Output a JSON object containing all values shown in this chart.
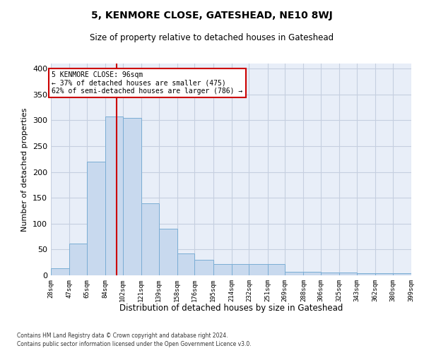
{
  "title": "5, KENMORE CLOSE, GATESHEAD, NE10 8WJ",
  "subtitle": "Size of property relative to detached houses in Gateshead",
  "xlabel": "Distribution of detached houses by size in Gateshead",
  "ylabel": "Number of detached properties",
  "bar_color": "#c8d9ee",
  "bar_edge_color": "#7aadd4",
  "grid_color": "#c5cfe0",
  "background_color": "#e8eef8",
  "annotation_text": "5 KENMORE CLOSE: 96sqm\n← 37% of detached houses are smaller (475)\n62% of semi-detached houses are larger (786) →",
  "vline_x": 96,
  "vline_color": "#cc0000",
  "bin_edges": [
    28,
    47,
    65,
    84,
    102,
    121,
    139,
    158,
    176,
    195,
    214,
    232,
    251,
    269,
    288,
    306,
    325,
    343,
    362,
    380,
    399
  ],
  "bar_heights": [
    13,
    62,
    220,
    308,
    305,
    140,
    90,
    43,
    30,
    22,
    22,
    22,
    22,
    7,
    7,
    6,
    5,
    4,
    4,
    4
  ],
  "ylim": [
    0,
    410
  ],
  "yticks": [
    0,
    50,
    100,
    150,
    200,
    250,
    300,
    350,
    400
  ],
  "footer1": "Contains HM Land Registry data © Crown copyright and database right 2024.",
  "footer2": "Contains public sector information licensed under the Open Government Licence v3.0."
}
